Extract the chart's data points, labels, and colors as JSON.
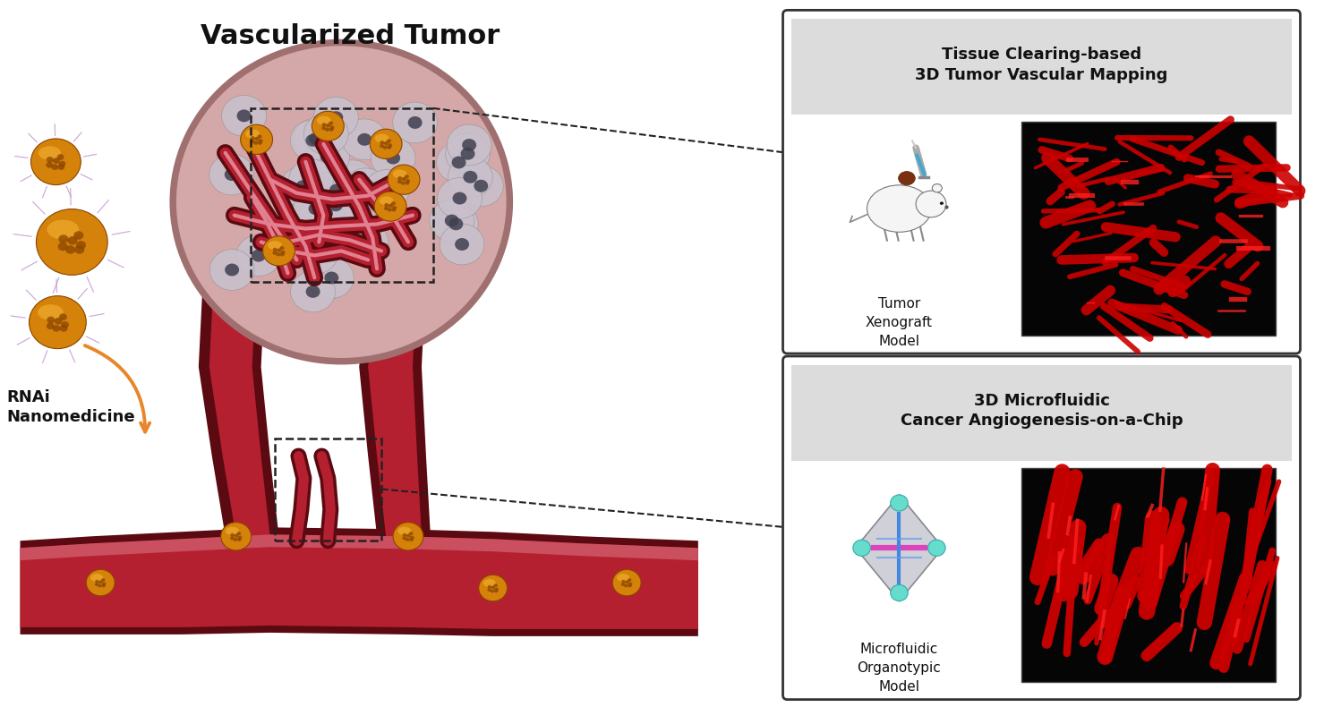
{
  "fig_width": 14.79,
  "fig_height": 7.9,
  "bg_color": "#ffffff",
  "title_main": "Vascularized Tumor",
  "title_main_fontsize": 22,
  "box1_title_line1": "Tissue Clearing-based",
  "box1_title_line2": "3D Tumor Vascular Mapping",
  "box1_subtitle": "Tumor\nXenograft\nModel",
  "box2_title_line1": "3D Microfluidic",
  "box2_title_line2": "Cancer Angiogenesis-on-a-Chip",
  "box2_subtitle": "Microfluidic\nOrganotypic\nModel",
  "rnai_label": "RNAi\nNanomedicine",
  "vessel_darkest": "#5A0A10",
  "vessel_dark": "#8B1520",
  "vessel_mid": "#B52030",
  "vessel_light": "#D05060",
  "vessel_highlight": "#E08090",
  "tumor_outer": "#C09090",
  "tumor_mid": "#D4A8A8",
  "tumor_inner": "#E8C8C8",
  "tumor_glow": "#F0E0E0",
  "cell_fill": "#C8C0CC",
  "cell_edge": "#909090",
  "nucleus_fill": "#404050",
  "nano_gold": "#D4820A",
  "nano_dark": "#8B4500",
  "nano_hi": "#F0B030",
  "rna_strand": "#C090D0",
  "arrow_orange": "#E8872A",
  "dashed_color": "#222222",
  "box_header_bg": "#DCDCDC",
  "box_body_bg": "#FFFFFF",
  "box_border": "#333333",
  "img_bg": "#050505",
  "img_red": "#CC0000",
  "img_red_bright": "#FF2020"
}
